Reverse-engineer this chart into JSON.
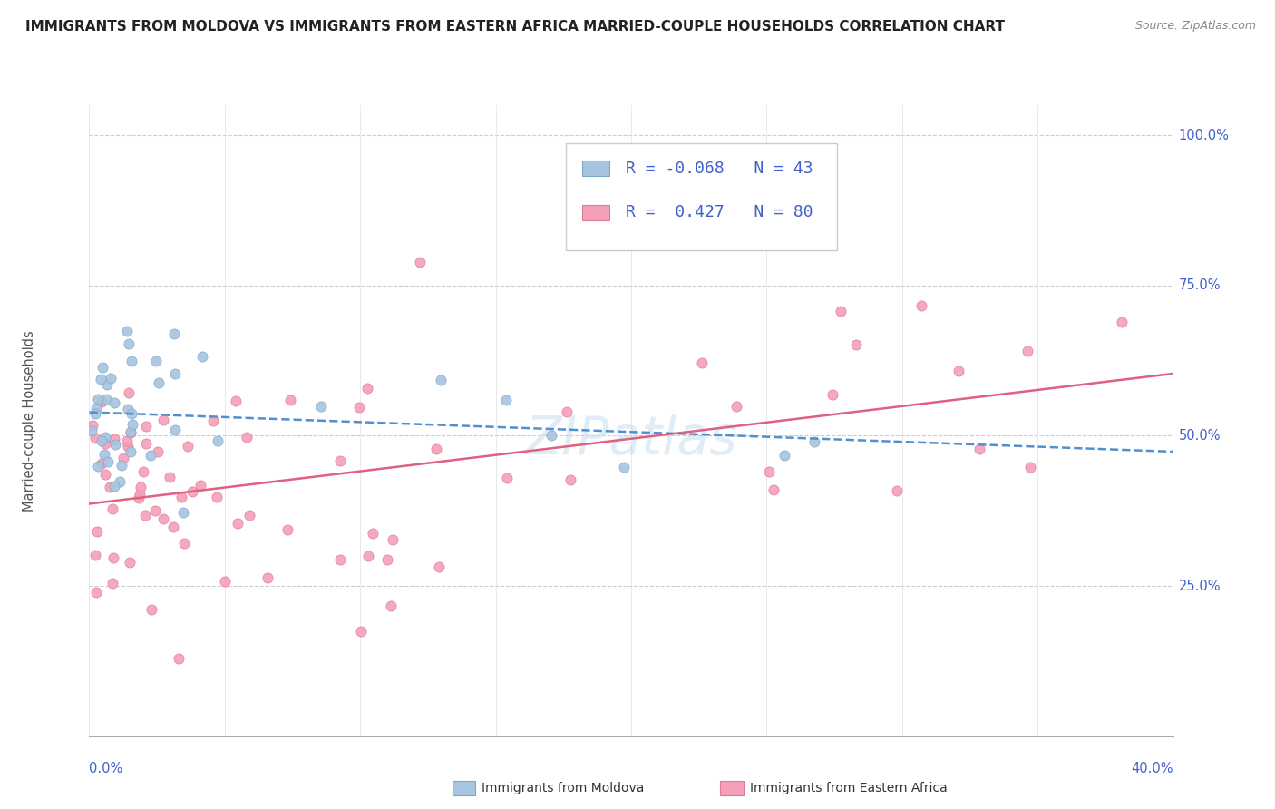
{
  "title": "IMMIGRANTS FROM MOLDOVA VS IMMIGRANTS FROM EASTERN AFRICA MARRIED-COUPLE HOUSEHOLDS CORRELATION CHART",
  "source": "Source: ZipAtlas.com",
  "ylabel": "Married-couple Households",
  "moldova_R": "-0.068",
  "moldova_N": "43",
  "eastern_africa_R": "0.427",
  "eastern_africa_N": "80",
  "moldova_color": "#a8c4e0",
  "moldova_edge_color": "#7aaac8",
  "eastern_africa_color": "#f4a0b8",
  "eastern_africa_edge_color": "#e07898",
  "moldova_line_color": "#5090d0",
  "eastern_africa_line_color": "#e06080",
  "legend_text_color": "#4060cc",
  "watermark_color": "#c8dff0",
  "grid_color": "#cccccc",
  "title_color": "#222222",
  "source_color": "#888888",
  "axis_label_color": "#4060cc",
  "ylabel_color": "#555555",
  "bottom_legend_text_color": "#333333"
}
